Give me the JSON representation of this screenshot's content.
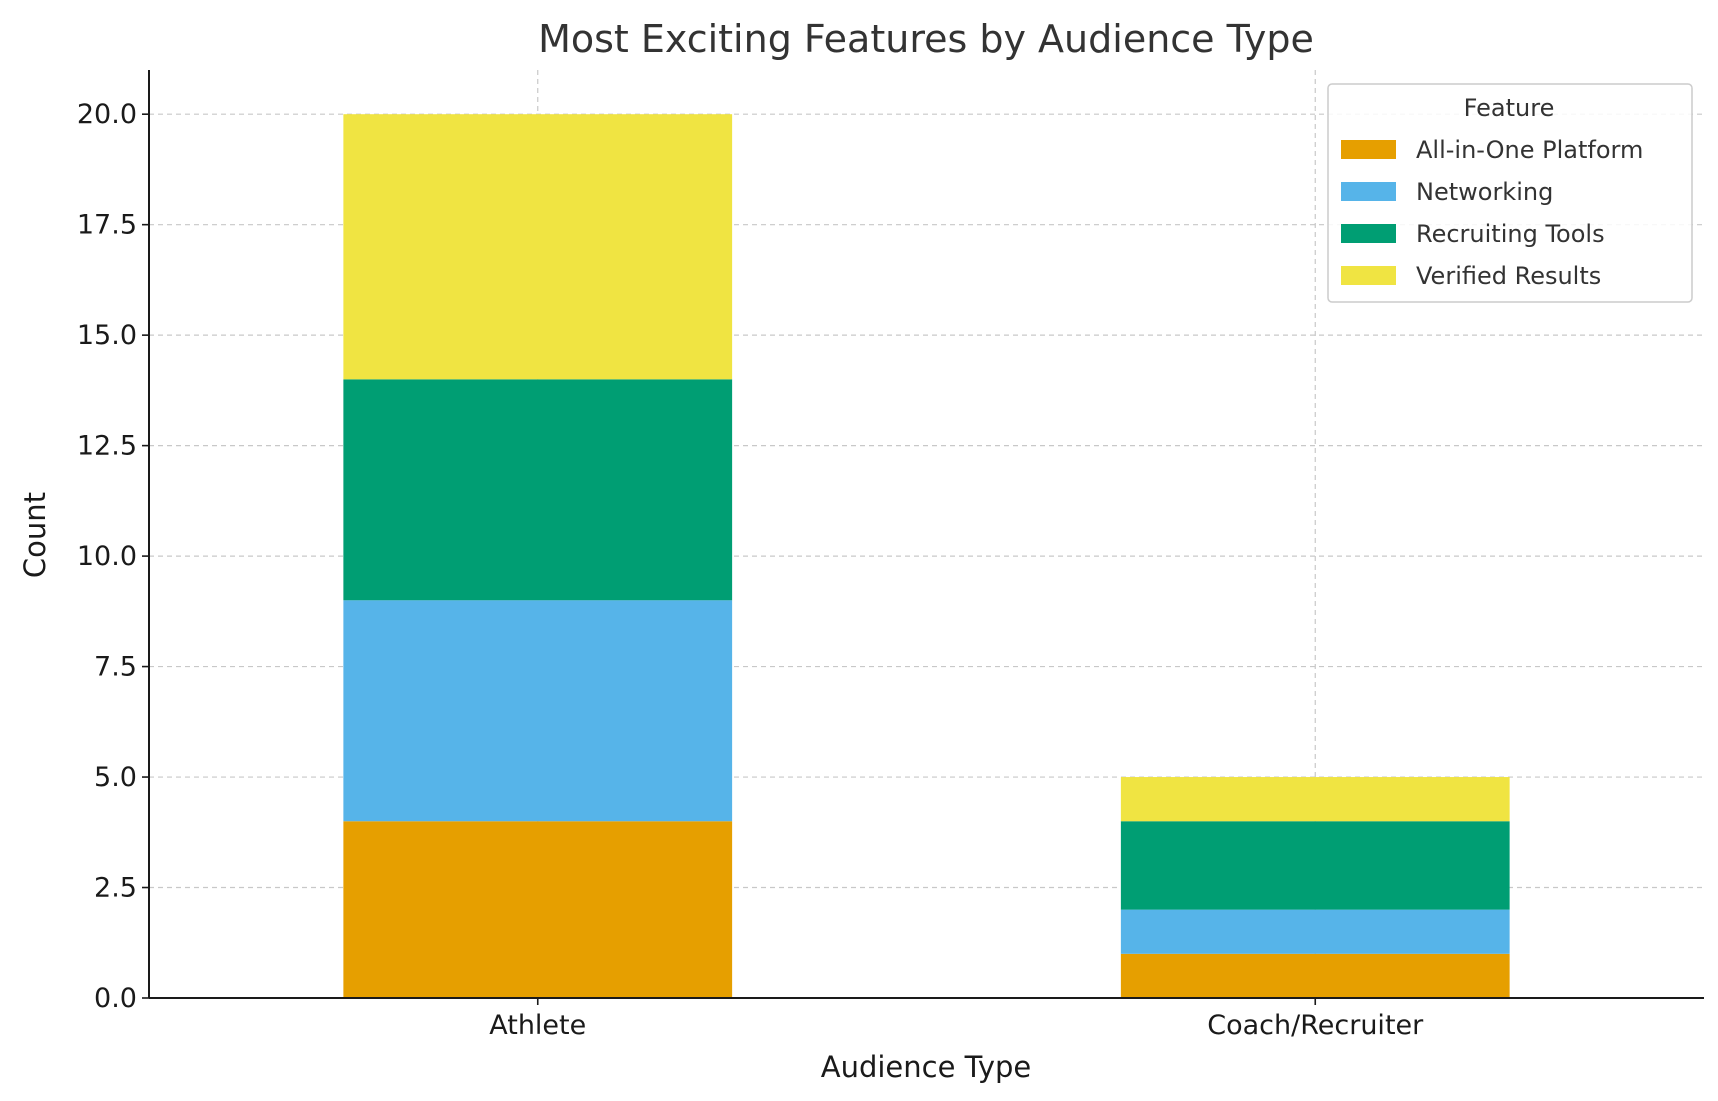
{
  "chart_data": {
    "type": "bar",
    "stacked": true,
    "title": "Most Exciting Features by Audience Type",
    "xlabel": "Audience Type",
    "ylabel": "Count",
    "ylim": [
      0,
      21
    ],
    "yticks": [
      "0.0",
      "2.5",
      "5.0",
      "7.5",
      "10.0",
      "12.5",
      "15.0",
      "17.5",
      "20.0"
    ],
    "grid": true,
    "legend_title": "Feature",
    "legend_position": "top-right",
    "categories": [
      "Athlete",
      "Coach/Recruiter"
    ],
    "series": [
      {
        "name": "All-in-One Platform",
        "values": [
          4,
          1
        ],
        "color": "#E69F00"
      },
      {
        "name": "Networking",
        "values": [
          5,
          1
        ],
        "color": "#56B4E9"
      },
      {
        "name": "Recruiting Tools",
        "values": [
          5,
          2
        ],
        "color": "#009E73"
      },
      {
        "name": "Verified Results",
        "values": [
          6,
          1
        ],
        "color": "#F0E442"
      }
    ]
  }
}
